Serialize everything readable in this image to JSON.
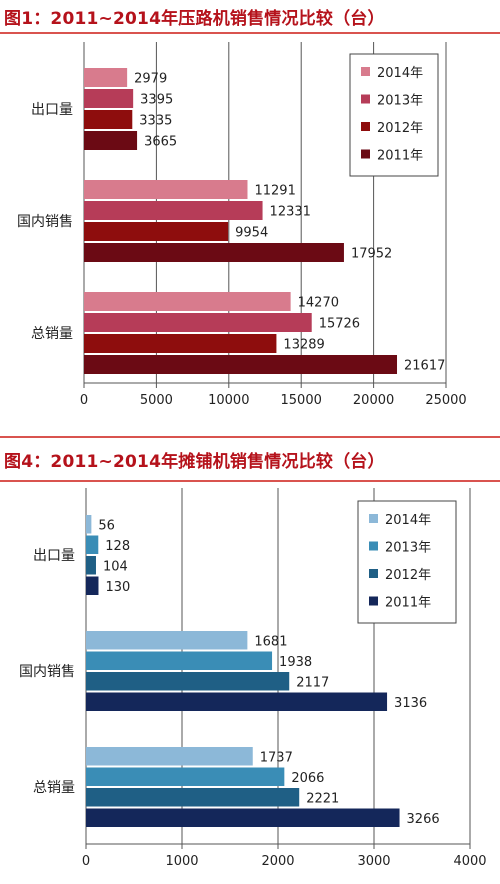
{
  "chart_data": [
    {
      "type": "bar",
      "orientation": "horizontal",
      "title": "图1：2011~2014年压路机销售情况比较（台）",
      "categories": [
        "出口量",
        "国内销售",
        "总销量"
      ],
      "series": [
        {
          "name": "2014年",
          "color": "#d87b8d",
          "values": [
            2979,
            11291,
            14270
          ]
        },
        {
          "name": "2013年",
          "color": "#b63c58",
          "values": [
            3395,
            12331,
            15726
          ]
        },
        {
          "name": "2012年",
          "color": "#8e0d0d",
          "values": [
            3335,
            9954,
            13289
          ]
        },
        {
          "name": "2011年",
          "color": "#6b0a14",
          "values": [
            3665,
            17952,
            21617
          ]
        }
      ],
      "xlim": [
        0,
        25000
      ],
      "xticks": [
        "0",
        "5000",
        "10000",
        "15000",
        "20000",
        "25000"
      ],
      "grid": true,
      "legend_position": "top-right"
    },
    {
      "type": "bar",
      "orientation": "horizontal",
      "title": "图4：2011~2014年摊铺机销售情况比较（台）",
      "categories": [
        "出口量",
        "国内销售",
        "总销量"
      ],
      "series": [
        {
          "name": "2014年",
          "color": "#8cb8d8",
          "values": [
            56,
            1681,
            1737
          ]
        },
        {
          "name": "2013年",
          "color": "#3a8db6",
          "values": [
            128,
            1938,
            2066
          ]
        },
        {
          "name": "2012年",
          "color": "#1f5f85",
          "values": [
            104,
            2117,
            2221
          ]
        },
        {
          "name": "2011年",
          "color": "#14275a",
          "values": [
            130,
            3136,
            3266
          ]
        }
      ],
      "xlim": [
        0,
        4000
      ],
      "xticks": [
        "0",
        "1000",
        "2000",
        "3000",
        "4000"
      ],
      "grid": true,
      "legend_position": "top-right"
    }
  ]
}
